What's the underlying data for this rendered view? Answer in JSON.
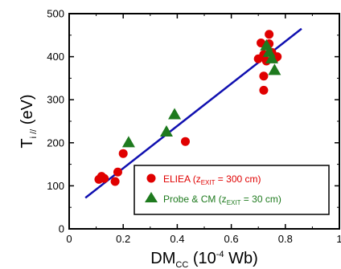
{
  "chart_data": {
    "type": "scatter",
    "xlabel": {
      "main": "DM",
      "sub": "CC",
      "unit": " (10",
      "sup": "-4",
      "tail": " Wb)"
    },
    "ylabel": {
      "main": "T",
      "sub": "i //",
      "tail": " (eV)"
    },
    "xlim": [
      0,
      1
    ],
    "ylim": [
      0,
      500
    ],
    "xticks": [
      0,
      0.2,
      0.4,
      0.6,
      0.8,
      1
    ],
    "xtick_labels": [
      "0",
      "0.2",
      "0.4",
      "0.6",
      "0.8",
      "1"
    ],
    "yticks": [
      0,
      100,
      200,
      300,
      400,
      500
    ],
    "ytick_labels": [
      "0",
      "100",
      "200",
      "300",
      "400",
      "500"
    ],
    "grid": false,
    "legend_position": "bottom-right",
    "series": [
      {
        "legend": {
          "name": "ELIEA (z",
          "sub": "EXIT",
          "tail": " = 300 cm)"
        },
        "marker": "circle",
        "color": "#e00000",
        "x": [
          0.11,
          0.12,
          0.12,
          0.13,
          0.17,
          0.18,
          0.2,
          0.43,
          0.7,
          0.71,
          0.72,
          0.72,
          0.72,
          0.73,
          0.74,
          0.74,
          0.75,
          0.76,
          0.77
        ],
        "y": [
          115,
          120,
          122,
          117,
          110,
          132,
          175,
          203,
          395,
          432,
          322,
          355,
          405,
          390,
          430,
          452,
          410,
          395,
          400
        ]
      },
      {
        "legend": {
          "name": "Probe & CM (z",
          "sub": "EXIT",
          "tail": " = 30 cm)"
        },
        "marker": "triangle",
        "color": "#1e7a1e",
        "x": [
          0.22,
          0.36,
          0.39,
          0.73,
          0.74,
          0.75,
          0.76
        ],
        "y": [
          200,
          225,
          265,
          425,
          410,
          395,
          368
        ]
      }
    ],
    "fit_line": {
      "color": "#1010b0",
      "x": [
        0.06,
        0.86
      ],
      "y": [
        72,
        465
      ]
    }
  }
}
